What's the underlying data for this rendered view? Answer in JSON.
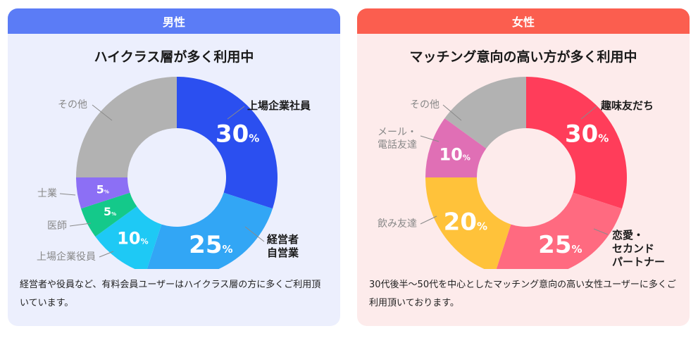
{
  "chart_data": [
    {
      "type": "pie",
      "header": "男性",
      "title": "ハイクラス層が多く利用中",
      "description": "経営者や役員など、有料会員ユーザーはハイクラス層の方に多くご利用頂いています。",
      "slices": [
        {
          "label": "上場企業社員",
          "value": 30,
          "pct_text": "30",
          "color": "#2b4ff0",
          "label_style": "bold"
        },
        {
          "label": "経営者\n自営業",
          "value": 25,
          "pct_text": "25",
          "color": "#32a6f5",
          "label_style": "bold"
        },
        {
          "label": "上場企業役員",
          "value": 10,
          "pct_text": "10",
          "color": "#1ec9f5",
          "label_style": "light"
        },
        {
          "label": "医師",
          "value": 5,
          "pct_text": "5",
          "color": "#14c98a",
          "label_style": "light"
        },
        {
          "label": "士業",
          "value": 5,
          "pct_text": "5",
          "color": "#8c6ff5",
          "label_style": "light"
        },
        {
          "label": "その他",
          "value": 25,
          "pct_text": "",
          "color": "#b2b2b2",
          "label_style": "light"
        }
      ]
    },
    {
      "type": "pie",
      "header": "女性",
      "title": "マッチング意向の高い方が多く利用中",
      "description": "30代後半〜50代を中心としたマッチング意向の高い女性ユーザーに多くご利用頂いております。",
      "slices": [
        {
          "label": "趣味友だち",
          "value": 30,
          "pct_text": "30",
          "color": "#ff3d5a",
          "label_style": "bold"
        },
        {
          "label": "恋愛・\nセカンド\nパートナー",
          "value": 25,
          "pct_text": "25",
          "color": "#ff6a80",
          "label_style": "bold"
        },
        {
          "label": "飲み友達",
          "value": 20,
          "pct_text": "20",
          "color": "#ffc23a",
          "label_style": "light"
        },
        {
          "label": "メール・\n電話友達",
          "value": 10,
          "pct_text": "10",
          "color": "#e06fb5",
          "label_style": "light"
        },
        {
          "label": "その他",
          "value": 15,
          "pct_text": "",
          "color": "#b2b2b2",
          "label_style": "light"
        }
      ]
    }
  ]
}
